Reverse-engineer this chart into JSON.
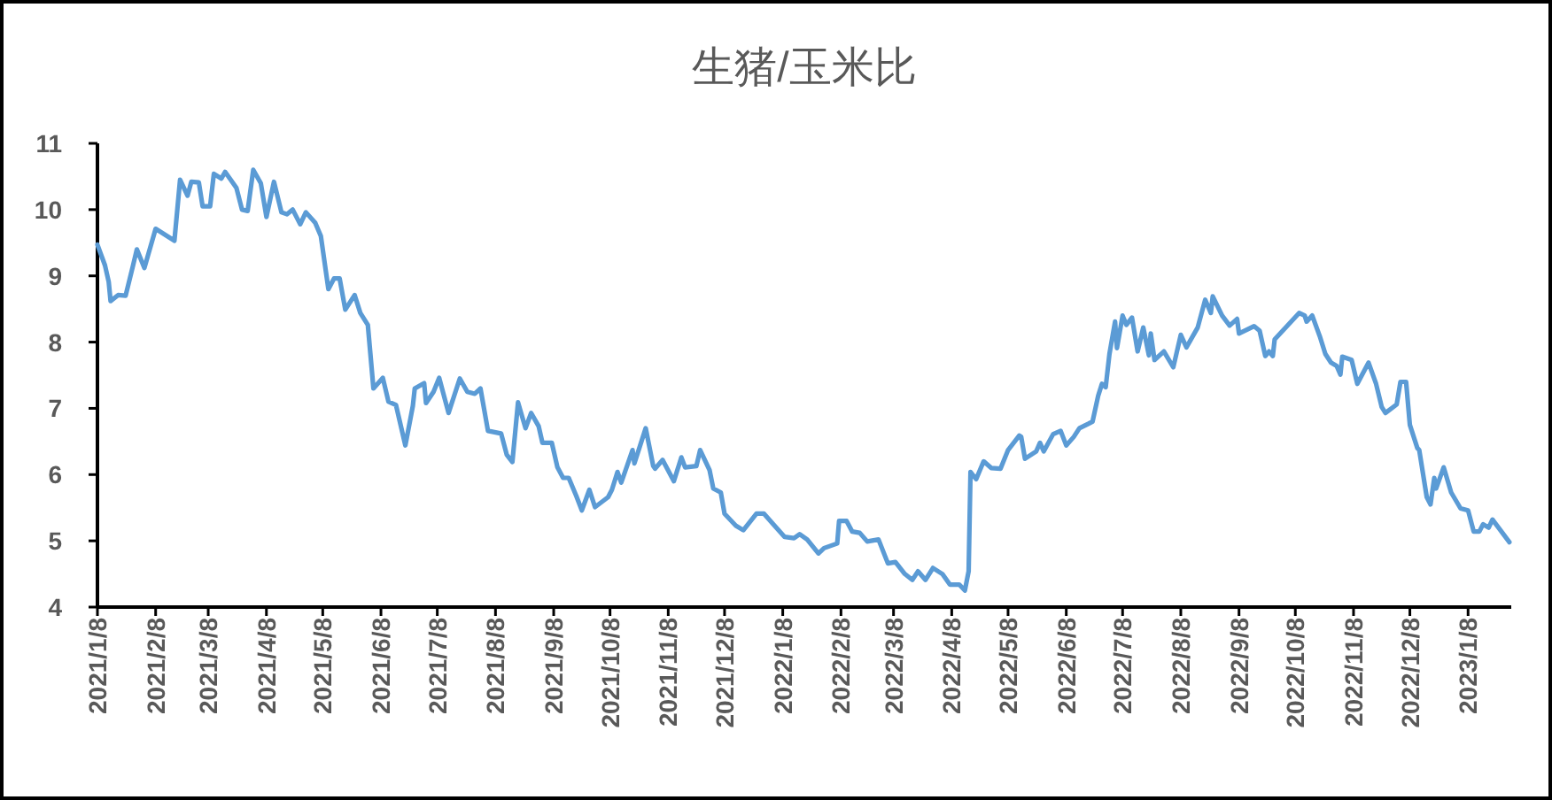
{
  "chart_data": {
    "type": "line",
    "title": "生猪/玉米比",
    "xlim": [
      "2021-01-08",
      "2023-01-31"
    ],
    "ylim": [
      4,
      11
    ],
    "yticks": [
      4,
      5,
      6,
      7,
      8,
      9,
      10,
      11
    ],
    "grid": false,
    "marker": "none",
    "line_style": "solid",
    "xticks": [
      {
        "value": "2021-01-08",
        "label": "2021/1/8"
      },
      {
        "value": "2021-02-08",
        "label": "2021/2/8"
      },
      {
        "value": "2021-03-08",
        "label": "2021/3/8"
      },
      {
        "value": "2021-04-08",
        "label": "2021/4/8"
      },
      {
        "value": "2021-05-08",
        "label": "2021/5/8"
      },
      {
        "value": "2021-06-08",
        "label": "2021/6/8"
      },
      {
        "value": "2021-07-08",
        "label": "2021/7/8"
      },
      {
        "value": "2021-08-08",
        "label": "2021/8/8"
      },
      {
        "value": "2021-09-08",
        "label": "2021/9/8"
      },
      {
        "value": "2021-10-08",
        "label": "2021/10/8"
      },
      {
        "value": "2021-11-08",
        "label": "2021/11/8"
      },
      {
        "value": "2021-12-08",
        "label": "2021/12/8"
      },
      {
        "value": "2022-01-08",
        "label": "2022/1/8"
      },
      {
        "value": "2022-02-08",
        "label": "2022/2/8"
      },
      {
        "value": "2022-03-08",
        "label": "2022/3/8"
      },
      {
        "value": "2022-04-08",
        "label": "2022/4/8"
      },
      {
        "value": "2022-05-08",
        "label": "2022/5/8"
      },
      {
        "value": "2022-06-08",
        "label": "2022/6/8"
      },
      {
        "value": "2022-07-08",
        "label": "2022/7/8"
      },
      {
        "value": "2022-08-08",
        "label": "2022/8/8"
      },
      {
        "value": "2022-09-08",
        "label": "2022/9/8"
      },
      {
        "value": "2022-10-08",
        "label": "2022/10/8"
      },
      {
        "value": "2022-11-08",
        "label": "2022/11/8"
      },
      {
        "value": "2022-12-08",
        "label": "2022/12/8"
      },
      {
        "value": "2023-01-08",
        "label": "2023/1/8"
      }
    ],
    "series": [
      {
        "color": "#5b9bd5",
        "x": [
          "2021-01-08",
          "2021-01-12",
          "2021-01-14",
          "2021-01-15",
          "2021-01-19",
          "2021-01-23",
          "2021-01-27",
          "2021-01-29",
          "2021-02-02",
          "2021-02-08",
          "2021-02-18",
          "2021-02-21",
          "2021-02-25",
          "2021-02-27",
          "2021-03-03",
          "2021-03-05",
          "2021-03-09",
          "2021-03-11",
          "2021-03-15",
          "2021-03-17",
          "2021-03-23",
          "2021-03-26",
          "2021-03-29",
          "2021-04-01",
          "2021-04-05",
          "2021-04-08",
          "2021-04-12",
          "2021-04-16",
          "2021-04-19",
          "2021-04-22",
          "2021-04-26",
          "2021-04-29",
          "2021-05-04",
          "2021-05-07",
          "2021-05-11",
          "2021-05-14",
          "2021-05-17",
          "2021-05-20",
          "2021-05-25",
          "2021-05-28",
          "2021-06-01",
          "2021-06-04",
          "2021-06-09",
          "2021-06-12",
          "2021-06-16",
          "2021-06-21",
          "2021-06-25",
          "2021-06-26",
          "2021-07-01",
          "2021-07-02",
          "2021-07-06",
          "2021-07-09",
          "2021-07-14",
          "2021-07-20",
          "2021-07-24",
          "2021-07-28",
          "2021-07-31",
          "2021-08-04",
          "2021-08-11",
          "2021-08-14",
          "2021-08-17",
          "2021-08-20",
          "2021-08-24",
          "2021-08-27",
          "2021-08-31",
          "2021-09-02",
          "2021-09-07",
          "2021-09-10",
          "2021-09-13",
          "2021-09-16",
          "2021-09-20",
          "2021-09-23",
          "2021-09-27",
          "2021-09-30",
          "2021-10-07",
          "2021-10-09",
          "2021-10-12",
          "2021-10-14",
          "2021-10-20",
          "2021-10-21",
          "2021-10-27",
          "2021-10-31",
          "2021-11-01",
          "2021-11-05",
          "2021-11-11",
          "2021-11-15",
          "2021-11-17",
          "2021-11-23",
          "2021-11-25",
          "2021-11-30",
          "2021-12-02",
          "2021-12-06",
          "2021-12-08",
          "2021-12-14",
          "2021-12-18",
          "2021-12-25",
          "2021-12-29",
          "2022-01-03",
          "2022-01-09",
          "2022-01-14",
          "2022-01-17",
          "2022-01-21",
          "2022-01-27",
          "2022-01-30",
          "2022-02-06",
          "2022-02-07",
          "2022-02-11",
          "2022-02-14",
          "2022-02-18",
          "2022-02-22",
          "2022-02-28",
          "2022-03-05",
          "2022-03-09",
          "2022-03-14",
          "2022-03-18",
          "2022-03-21",
          "2022-03-25",
          "2022-03-29",
          "2022-04-03",
          "2022-04-07",
          "2022-04-12",
          "2022-04-15",
          "2022-04-17",
          "2022-04-18",
          "2022-04-21",
          "2022-04-25",
          "2022-04-29",
          "2022-05-04",
          "2022-05-08",
          "2022-05-14",
          "2022-05-15",
          "2022-05-17",
          "2022-05-23",
          "2022-05-25",
          "2022-05-27",
          "2022-06-01",
          "2022-06-05",
          "2022-06-08",
          "2022-06-12",
          "2022-06-15",
          "2022-06-20",
          "2022-06-22",
          "2022-06-25",
          "2022-06-27",
          "2022-06-29",
          "2022-07-01",
          "2022-07-04",
          "2022-07-05",
          "2022-07-08",
          "2022-07-10",
          "2022-07-13",
          "2022-07-16",
          "2022-07-19",
          "2022-07-22",
          "2022-07-23",
          "2022-07-25",
          "2022-07-30",
          "2022-08-04",
          "2022-08-08",
          "2022-08-11",
          "2022-08-17",
          "2022-08-21",
          "2022-08-24",
          "2022-08-25",
          "2022-08-30",
          "2022-09-03",
          "2022-09-07",
          "2022-09-08",
          "2022-09-16",
          "2022-09-19",
          "2022-09-22",
          "2022-09-24",
          "2022-09-26",
          "2022-09-27",
          "2022-10-10",
          "2022-10-13",
          "2022-10-14",
          "2022-10-17",
          "2022-10-21",
          "2022-10-24",
          "2022-10-27",
          "2022-10-30",
          "2022-11-01",
          "2022-11-02",
          "2022-11-07",
          "2022-11-10",
          "2022-11-16",
          "2022-11-20",
          "2022-11-23",
          "2022-11-25",
          "2022-12-01",
          "2022-12-03",
          "2022-12-06",
          "2022-12-08",
          "2022-12-12",
          "2022-12-13",
          "2022-12-17",
          "2022-12-19",
          "2022-12-21",
          "2022-12-22",
          "2022-12-26",
          "2022-12-30",
          "2023-01-04",
          "2023-01-08",
          "2023-01-11",
          "2023-01-14",
          "2023-01-16",
          "2023-01-19",
          "2023-01-21",
          "2023-01-30"
        ],
        "values": [
          9.47,
          9.16,
          8.91,
          8.62,
          8.71,
          8.7,
          9.16,
          9.4,
          9.12,
          9.71,
          9.53,
          10.45,
          10.21,
          10.42,
          10.41,
          10.05,
          10.05,
          10.54,
          10.47,
          10.57,
          10.33,
          10.0,
          9.98,
          10.6,
          10.4,
          9.89,
          10.42,
          9.96,
          9.93,
          10.0,
          9.78,
          9.96,
          9.8,
          9.6,
          8.8,
          8.96,
          8.96,
          8.49,
          8.71,
          8.44,
          8.26,
          7.3,
          7.46,
          7.1,
          7.05,
          6.44,
          7.04,
          7.3,
          7.38,
          7.08,
          7.25,
          7.46,
          6.93,
          7.45,
          7.25,
          7.22,
          7.3,
          6.66,
          6.62,
          6.3,
          6.19,
          7.09,
          6.7,
          6.93,
          6.73,
          6.48,
          6.48,
          6.11,
          5.95,
          5.95,
          5.68,
          5.46,
          5.77,
          5.51,
          5.66,
          5.77,
          6.04,
          5.88,
          6.37,
          6.17,
          6.7,
          6.13,
          6.09,
          6.22,
          5.9,
          6.26,
          6.11,
          6.13,
          6.37,
          6.07,
          5.79,
          5.73,
          5.41,
          5.23,
          5.16,
          5.41,
          5.41,
          5.25,
          5.06,
          5.04,
          5.1,
          5.02,
          4.81,
          4.89,
          4.96,
          5.3,
          5.3,
          5.14,
          5.12,
          4.99,
          5.02,
          4.66,
          4.68,
          4.5,
          4.41,
          4.54,
          4.41,
          4.59,
          4.5,
          4.34,
          4.34,
          4.25,
          4.54,
          6.04,
          5.93,
          6.2,
          6.1,
          6.09,
          6.37,
          6.59,
          6.57,
          6.24,
          6.35,
          6.48,
          6.35,
          6.61,
          6.66,
          6.44,
          6.57,
          6.7,
          6.77,
          6.8,
          7.19,
          7.37,
          7.32,
          7.82,
          8.31,
          7.91,
          8.4,
          8.26,
          8.37,
          7.86,
          8.22,
          7.8,
          8.13,
          7.73,
          7.86,
          7.62,
          8.11,
          7.92,
          8.22,
          8.64,
          8.44,
          8.69,
          8.4,
          8.25,
          8.35,
          8.13,
          8.24,
          8.17,
          7.79,
          7.86,
          7.79,
          8.04,
          8.44,
          8.4,
          8.31,
          8.4,
          8.09,
          7.82,
          7.69,
          7.64,
          7.51,
          7.78,
          7.73,
          7.37,
          7.69,
          7.37,
          7.02,
          6.93,
          7.06,
          7.4,
          7.4,
          6.75,
          6.4,
          6.37,
          5.66,
          5.55,
          5.95,
          5.79,
          6.11,
          5.73,
          5.49,
          5.46,
          5.14,
          5.14,
          5.25,
          5.2,
          5.32,
          4.98
        ]
      }
    ]
  }
}
